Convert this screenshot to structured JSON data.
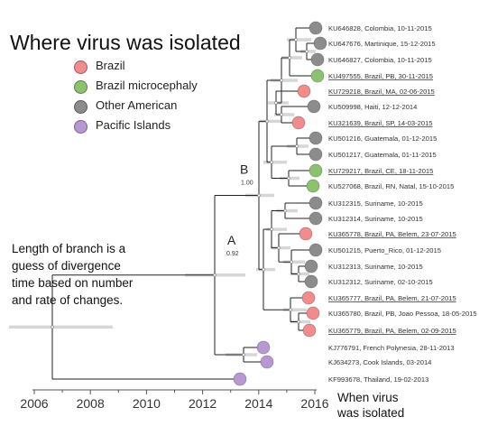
{
  "title": "Where virus was isolated",
  "legend": [
    {
      "label": "Brazil",
      "color": "#f08c8c"
    },
    {
      "label": "Brazil microcephaly",
      "color": "#8cc26e"
    },
    {
      "label": "Other American",
      "color": "#8c8c8c"
    },
    {
      "label": "Pacific Islands",
      "color": "#b898d2"
    }
  ],
  "note_lines": [
    "Length of branch is a",
    "guess of divergence",
    "time based on number",
    "and rate of changes."
  ],
  "axis_caption_lines": [
    "When virus",
    "was isolated"
  ],
  "axis": {
    "ticks": [
      "2006",
      "2008",
      "2010",
      "2012",
      "2014",
      "2016"
    ],
    "range": [
      2006,
      2016
    ]
  },
  "nodes": [
    {
      "letter": "A",
      "support": "0.92"
    },
    {
      "letter": "B",
      "support": "1.00"
    }
  ],
  "leaves": [
    {
      "label": "KU646828, Colombia, 10-11-2015",
      "group": "other",
      "underline": false
    },
    {
      "label": "KU647676, Martinique, 15-12-2015",
      "group": "other",
      "underline": false
    },
    {
      "label": "KU646827, Colombia, 10-11-2015",
      "group": "other",
      "underline": false
    },
    {
      "label": "KU497555, Brazil, PB, 30-11-2015",
      "group": "microcephaly",
      "underline": true
    },
    {
      "label": "KU729218, Brazil, MA, 02-06-2015",
      "group": "brazil",
      "underline": true
    },
    {
      "label": "KU509998, Haiti, 12-12-2014",
      "group": "other",
      "underline": false
    },
    {
      "label": "KU321639, Brazil, SP, 14-03-2015",
      "group": "brazil",
      "underline": true
    },
    {
      "label": "KU501216, Guatemala, 01-12-2015",
      "group": "other",
      "underline": false
    },
    {
      "label": "KU501217, Guatemala, 01-11-2015",
      "group": "other",
      "underline": false
    },
    {
      "label": "KU729217, Brazil, CE, 18-11-2015",
      "group": "microcephaly",
      "underline": true
    },
    {
      "label": "KU527068, Brazil, RN, Natal, 15-10-2015",
      "group": "microcephaly",
      "underline": false
    },
    {
      "label": "KU312315, Suriname, 10-2015",
      "group": "other",
      "underline": false
    },
    {
      "label": "KU312314, Suriname, 10-2015",
      "group": "other",
      "underline": false
    },
    {
      "label": "KU365778, Brazil, PA, Belem, 23-07-2015",
      "group": "brazil",
      "underline": true
    },
    {
      "label": "KU501215, Puerto_Rico, 01-12-2015",
      "group": "other",
      "underline": false
    },
    {
      "label": "KU312313, Suriname, 10-2015",
      "group": "other",
      "underline": false
    },
    {
      "label": "KU312312, Suriname, 02-10-2015",
      "group": "other",
      "underline": false
    },
    {
      "label": "KU365777, Brazil, PA, Belem, 21-07-2015",
      "group": "brazil",
      "underline": true
    },
    {
      "label": "KU365780, Brazil, PB, Joao Pessoa, 18-05-2015",
      "group": "brazil",
      "underline": false
    },
    {
      "label": "KU365779, Brazil, PA, Belem, 02-09-2015",
      "group": "brazil",
      "underline": true
    },
    {
      "label": "KJ776791, French Polynesia, 28-11-2013",
      "group": "pacific",
      "underline": false
    },
    {
      "label": "KJ634273, Cook Islands, 03-2014",
      "group": "pacific",
      "underline": false
    },
    {
      "label": "KF993678, Thailand, 19-02-2013",
      "group": "pacific",
      "underline": false
    }
  ],
  "colors": {
    "brazil": "#f08c8c",
    "microcephaly": "#8cc26e",
    "other": "#8c8c8c",
    "pacific": "#b898d2",
    "branch": "#222222",
    "error_bar": "#d6d6d6"
  }
}
